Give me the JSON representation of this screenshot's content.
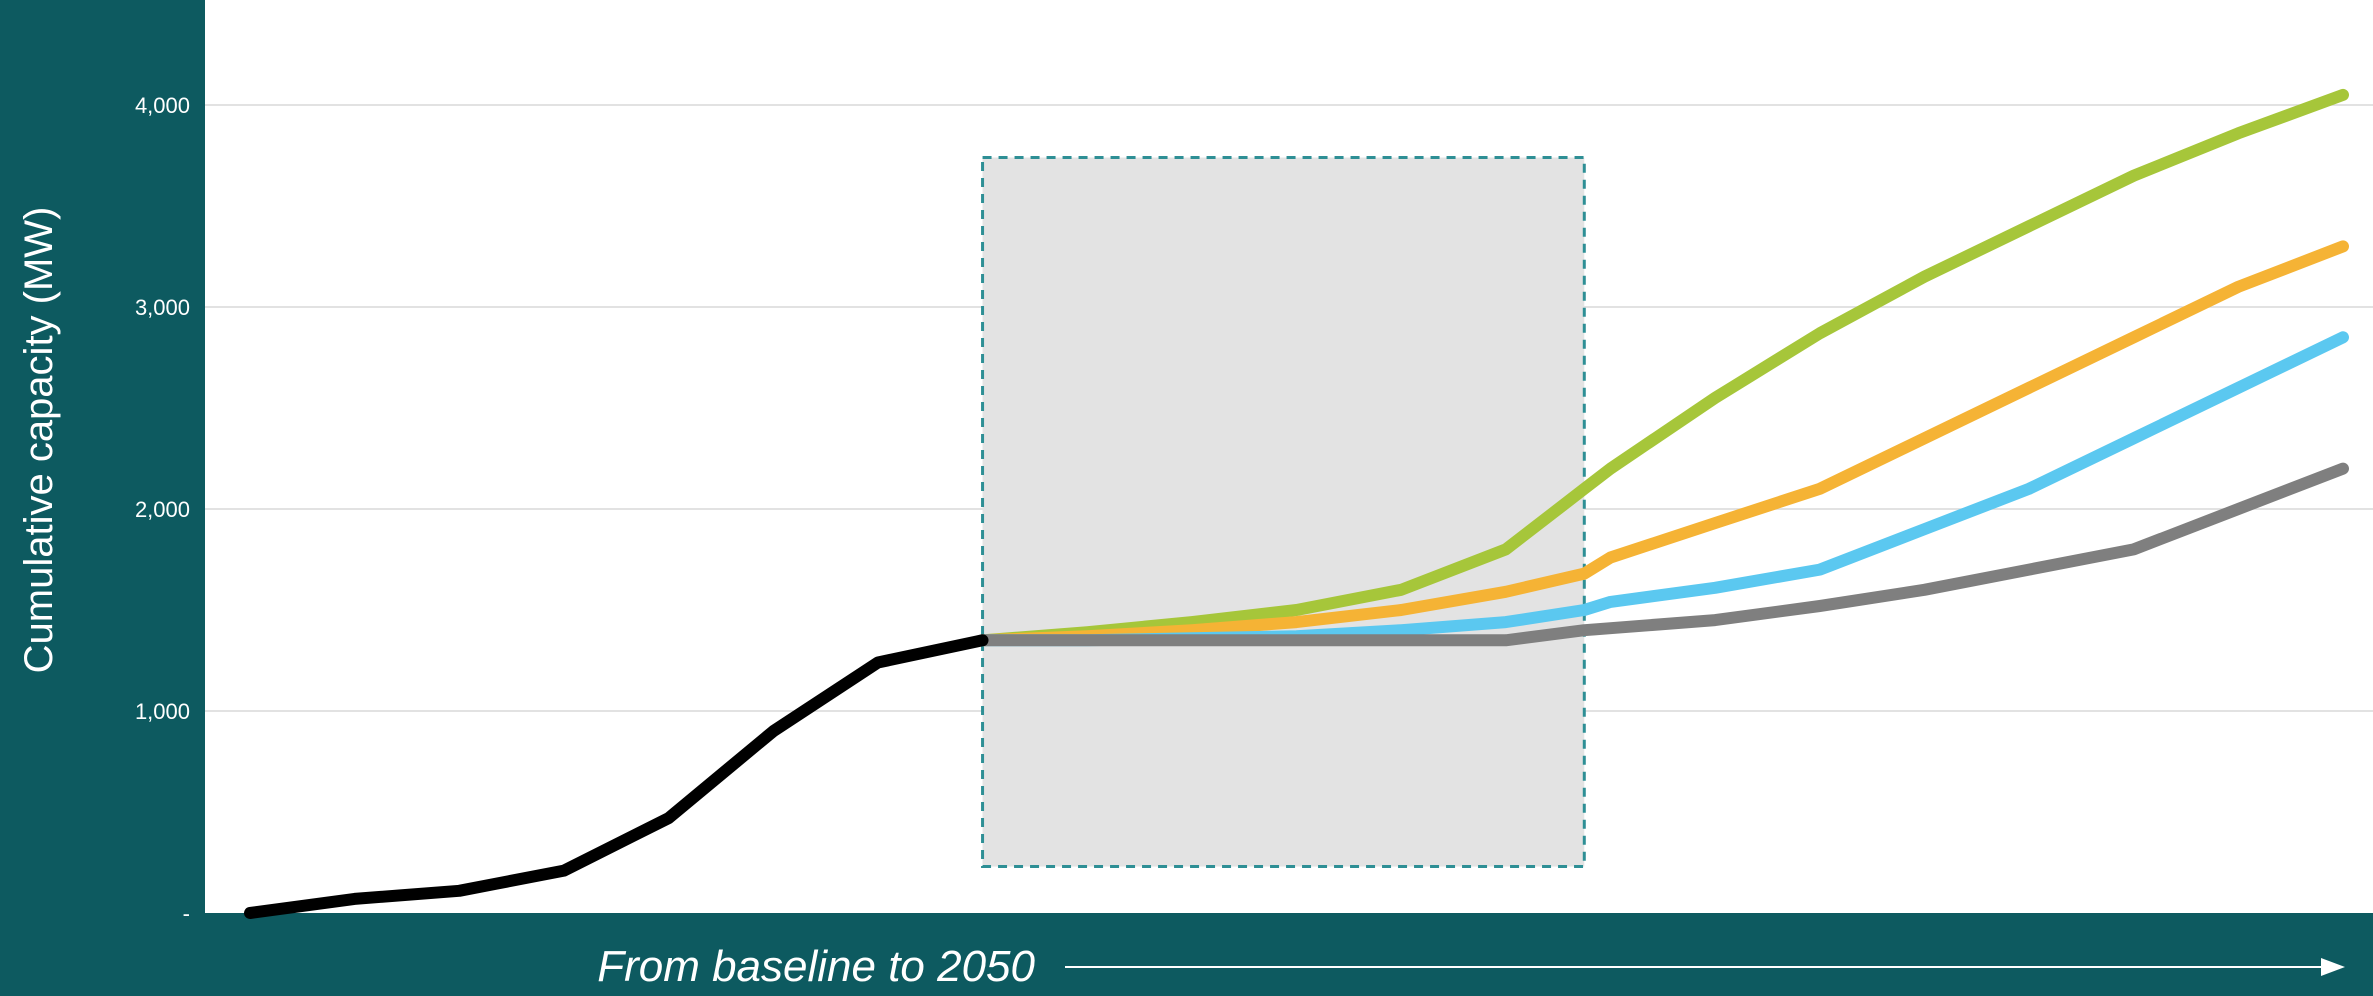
{
  "chart_data": {
    "type": "line",
    "xlabel": "From baseline to 2050",
    "ylabel": "Cumulative capacity (MW)",
    "ylim": [
      0,
      4000
    ],
    "xlim": [
      0,
      20
    ],
    "yticks": [
      {
        "value": 0,
        "label": "-"
      },
      {
        "value": 1000,
        "label": "1,000"
      },
      {
        "value": 2000,
        "label": "2,000"
      },
      {
        "value": 3000,
        "label": "3,000"
      },
      {
        "value": 4000,
        "label": "4,000"
      }
    ],
    "grid": true,
    "highlight_region": {
      "x_start": 7,
      "x_end": 12.75,
      "y_start": 230,
      "y_end": 3740
    },
    "colors": {
      "background": "#0d5a60",
      "plot_area": "#ffffff",
      "grid": "#d9d9d9",
      "highlight_fill": "#e3e3e3",
      "highlight_border": "#2e8f95"
    },
    "series": [
      {
        "color": "#000000",
        "x": [
          0,
          1,
          2,
          3,
          4,
          5,
          6,
          7
        ],
        "y": [
          0,
          70,
          110,
          210,
          470,
          900,
          1240,
          1350
        ]
      },
      {
        "color": "#a6c63a",
        "x": [
          7,
          8,
          9,
          10,
          11,
          12,
          12.75,
          13,
          14,
          15,
          16,
          17,
          18,
          19,
          20
        ],
        "y": [
          1350,
          1390,
          1440,
          1500,
          1600,
          1800,
          2100,
          2200,
          2550,
          2870,
          3150,
          3400,
          3650,
          3860,
          4050
        ]
      },
      {
        "color": "#f5b335",
        "x": [
          7,
          8,
          9,
          10,
          11,
          12,
          12.75,
          13,
          14,
          15,
          16,
          17,
          18,
          19,
          20
        ],
        "y": [
          1350,
          1370,
          1400,
          1440,
          1500,
          1590,
          1680,
          1760,
          1930,
          2100,
          2350,
          2600,
          2850,
          3100,
          3300
        ]
      },
      {
        "color": "#5bc8f0",
        "x": [
          7,
          8,
          9,
          10,
          11,
          12,
          12.75,
          13,
          14,
          15,
          16,
          17,
          18,
          19,
          20
        ],
        "y": [
          1350,
          1350,
          1360,
          1370,
          1400,
          1440,
          1500,
          1540,
          1610,
          1700,
          1900,
          2100,
          2350,
          2600,
          2850
        ]
      },
      {
        "color": "#7f7f7f",
        "x": [
          7,
          8,
          9,
          10,
          11,
          12,
          12.75,
          13,
          14,
          15,
          16,
          17,
          18,
          19,
          20
        ],
        "y": [
          1350,
          1350,
          1350,
          1350,
          1350,
          1350,
          1400,
          1410,
          1450,
          1520,
          1600,
          1700,
          1800,
          2000,
          2200
        ]
      }
    ]
  }
}
